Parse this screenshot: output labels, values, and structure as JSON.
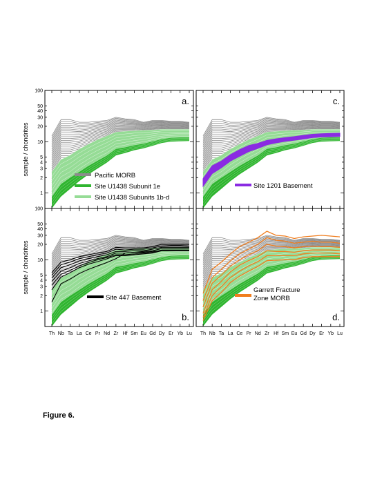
{
  "caption": "Figure 6.",
  "chart_data": {
    "type": "line",
    "ylabel": "sample / chondrites",
    "yscale": "log",
    "ylim": [
      0.5,
      100
    ],
    "yticks": [
      1,
      2,
      3,
      4,
      5,
      10,
      20,
      30,
      40,
      50,
      100
    ],
    "categories": [
      "Th",
      "Nb",
      "Ta",
      "La",
      "Ce",
      "Pr",
      "Nd",
      "Zr",
      "Hf",
      "Sm",
      "Eu",
      "Gd",
      "Dy",
      "Er",
      "Yb",
      "Lu"
    ],
    "colors": {
      "morb": "#8c8c8c",
      "u1438_1e": "#2fb52f",
      "u1438_1bd": "#96dc96",
      "site1201": "#8a2be2",
      "site447": "#000000",
      "garrett": "#f07d1e"
    },
    "background_series": {
      "pacific_morb": {
        "name": "Pacific MORB",
        "upper": [
          13,
          27,
          27,
          24,
          24,
          25,
          26,
          30,
          28,
          27,
          24,
          26,
          26,
          25,
          25,
          24
        ],
        "lower": [
          0.75,
          1.5,
          1.5,
          2.2,
          3,
          4,
          5,
          7,
          8,
          8.5,
          9,
          10,
          11,
          11,
          11,
          11
        ]
      },
      "u1438_subunit_1e": {
        "name": "Site U1438 Subunit 1e",
        "upper": [
          0.85,
          1.5,
          2,
          2.6,
          3.4,
          4.3,
          5.4,
          7.3,
          7.8,
          8.6,
          9.2,
          10.2,
          11.3,
          12,
          12.2,
          12.2
        ],
        "lower": [
          0.5,
          0.85,
          1.2,
          1.7,
          2.3,
          3,
          3.9,
          5.4,
          6,
          6.8,
          7.4,
          8.3,
          9.4,
          10,
          10.2,
          10.3
        ]
      },
      "u1438_subunits_1b_d": {
        "name": "Site U1438 Subunits 1b-d",
        "upper": [
          2.6,
          4.5,
          5.5,
          7.2,
          9,
          11,
          13,
          15.5,
          16,
          16.5,
          16.8,
          17,
          17.5,
          17.5,
          17.5,
          17.5
        ],
        "lower": [
          0.75,
          1.4,
          1.8,
          2.5,
          3.3,
          4.2,
          5.2,
          7,
          7.6,
          8.4,
          9,
          10,
          11,
          11.5,
          11.8,
          11.8
        ]
      }
    },
    "panels": [
      {
        "label": "a.",
        "legend": [
          {
            "name": "Pacific MORB",
            "color": "#8c8c8c"
          },
          {
            "name": "Site U1438 Subunit 1e",
            "color": "#2fb52f"
          },
          {
            "name": "Site U1438 Subunits 1b-d",
            "color": "#96dc96"
          }
        ]
      },
      {
        "label": "c.",
        "legend": [
          {
            "name": "Site 1201 Basement",
            "color": "#8a2be2"
          }
        ],
        "highlight": {
          "name": "Site 1201 Basement",
          "upper": [
            1.9,
            3.4,
            4.2,
            5.6,
            7,
            8.4,
            9.3,
            10.6,
            11.4,
            12,
            12.6,
            13.3,
            14,
            14.3,
            14.5,
            14.7
          ],
          "lower": [
            1.35,
            2.4,
            3.1,
            4.2,
            5.2,
            6.4,
            7.4,
            8.7,
            9.5,
            10.2,
            10.7,
            11.3,
            12,
            12.4,
            12.5,
            12.7
          ]
        }
      },
      {
        "label": "b.",
        "legend": [
          {
            "name": "Site 447 Basement",
            "color": "#000000"
          }
        ],
        "highlight": {
          "name": "Site 447 Basement",
          "lines": [
            [
              5.6,
              9,
              10,
              11.5,
              12.5,
              13.5,
              14.5,
              17.5,
              17,
              17,
              17,
              18,
              20,
              20,
              20,
              20
            ],
            [
              5,
              8,
              9,
              10.5,
              11.5,
              12.5,
              13.5,
              16,
              15.5,
              16,
              16,
              17,
              18.5,
              19,
              19,
              18.5
            ],
            [
              4.4,
              7,
              8,
              9.5,
              10.5,
              11.5,
              12.5,
              14.5,
              14.5,
              15,
              15,
              16,
              17.5,
              17.5,
              17.5,
              17.5
            ],
            [
              3.8,
              6,
              7,
              8.5,
              9.5,
              10.5,
              11.5,
              13.5,
              13.5,
              14,
              14.5,
              15,
              16.5,
              16.5,
              16.5,
              16.5
            ],
            [
              3.2,
              5.2,
              6.2,
              7.6,
              8.8,
              10,
              11,
              12.5,
              12.5,
              13,
              13.5,
              14,
              15.5,
              15.5,
              15.5,
              15.5
            ],
            [
              2.6,
              4.6,
              5.6,
              7,
              8.2,
              9.2,
              10.4,
              12,
              12,
              12.5,
              13,
              13.5,
              15,
              15,
              15,
              15
            ],
            [
              1.5,
              3.4,
              4.2,
              5.4,
              6.5,
              7.6,
              8.8,
              10.5,
              13.5,
              14,
              14,
              14.5,
              15,
              15,
              15,
              15
            ]
          ]
        }
      },
      {
        "label": "d.",
        "legend": [
          {
            "name": "Garrett Fracture Zone MORB",
            "lines": [
              "Garrett Fracture",
              "Zone MORB"
            ],
            "color": "#f07d1e"
          }
        ],
        "highlight": {
          "name": "Garrett Fracture Zone MORB",
          "lines": [
            [
              2.2,
              6.5,
              9,
              13,
              18,
              22,
              27,
              36,
              30,
              29,
              26,
              28,
              29,
              30,
              29,
              28
            ],
            [
              1.6,
              4.5,
              6.5,
              9.5,
              13,
              16,
              20,
              27,
              24,
              23,
              21,
              22,
              23,
              22,
              22,
              21
            ],
            [
              1.2,
              3.5,
              5,
              7.5,
              10,
              12.5,
              15,
              20,
              18.5,
              18,
              17,
              18,
              18.5,
              18,
              18,
              17.5
            ],
            [
              0.9,
              2.6,
              3.8,
              5.8,
              7.8,
              9.6,
              11.5,
              15,
              14.5,
              14.5,
              14,
              15,
              15.5,
              15.5,
              15.5,
              15
            ],
            [
              0.75,
              2,
              3,
              4.5,
              6,
              7.6,
              9.2,
              12,
              12,
              12,
              12,
              13,
              13.5,
              13.5,
              13.5,
              13
            ],
            [
              0.65,
              1.6,
              2.3,
              3.6,
              4.8,
              6,
              7.4,
              9.6,
              9.8,
              10,
              10,
              11,
              11.5,
              11.5,
              11.5,
              11.5
            ]
          ]
        }
      }
    ]
  }
}
